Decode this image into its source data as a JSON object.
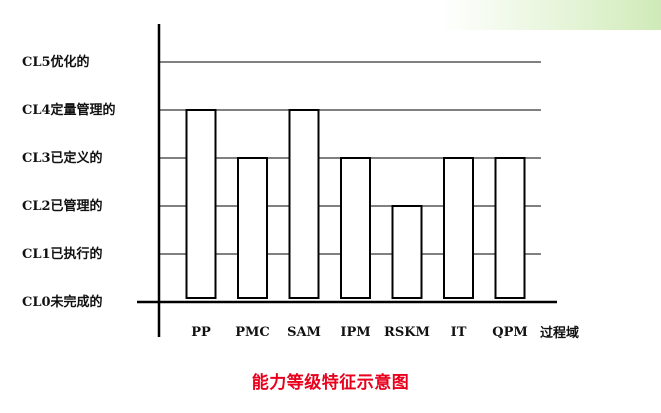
{
  "chart_data": {
    "type": "bar",
    "title": "能力等级特征示意图",
    "xlabel": "过程域",
    "ylabel": "",
    "levels": [
      "CL0未完成的",
      "CL1已执行的",
      "CL2已管理的",
      "CL3已定义的",
      "CL4定量管理的",
      "CL5优化的"
    ],
    "ylim": [
      0,
      5
    ],
    "grid": true,
    "categories": [
      "PP",
      "PMC",
      "SAM",
      "IPM",
      "RSKM",
      "IT",
      "QPM"
    ],
    "values": [
      4,
      3,
      4,
      3,
      2,
      3,
      3
    ]
  },
  "colors": {
    "bar_fill": "#ffffff",
    "bar_stroke": "#000000",
    "axis": "#000000",
    "title": "#e8001c",
    "corner_accent": "#cfeab8"
  }
}
